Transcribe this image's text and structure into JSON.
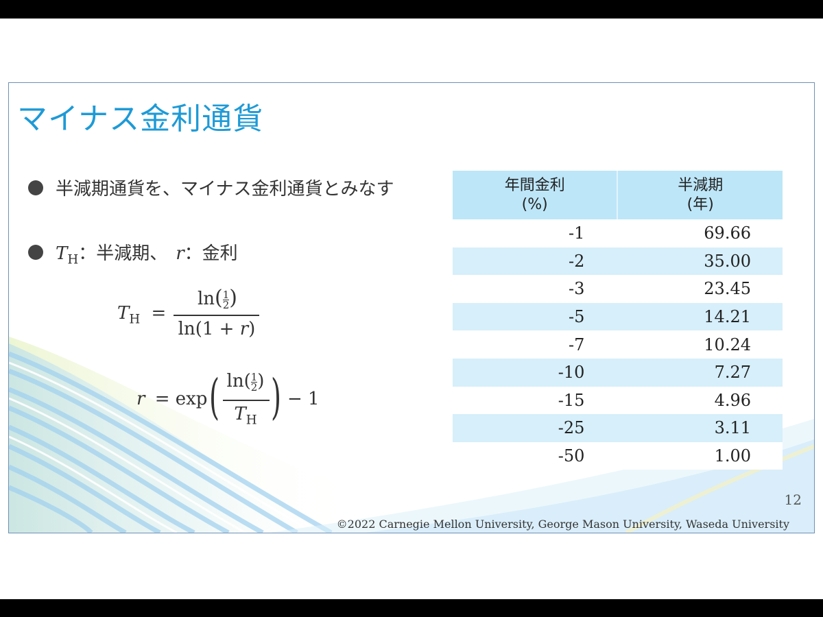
{
  "slide": {
    "title": "マイナス金利通貨",
    "bullets": [
      {
        "text": "半減期通貨を、マイナス金利通貨とみなす"
      },
      {
        "var_T": "T",
        "sub_H": "H",
        "text_a": "：半減期、",
        "var_r": "r",
        "text_b": "：金利"
      }
    ],
    "formula1": {
      "T": "T",
      "H": "H",
      "eq": "=",
      "ln_top": "ln",
      "one": "1",
      "two": "2",
      "den": "ln(1 + ",
      "r": "r",
      "close": ")"
    },
    "formula2": {
      "r": "r",
      "eq": "= exp",
      "ln_top": "ln",
      "one": "1",
      "two": "2",
      "T": "T",
      "H": "H",
      "minus_one": "− 1"
    },
    "table": {
      "headers": [
        "年間金利",
        "(%)",
        "半減期",
        "(年)"
      ],
      "rows": [
        [
          "-1",
          "69.66"
        ],
        [
          "-2",
          "35.00"
        ],
        [
          "-3",
          "23.45"
        ],
        [
          "-5",
          "14.21"
        ],
        [
          "-7",
          "10.24"
        ],
        [
          "-10",
          "7.27"
        ],
        [
          "-15",
          "4.96"
        ],
        [
          "-25",
          "3.11"
        ],
        [
          "-50",
          "1.00"
        ]
      ]
    },
    "page_number": "12",
    "footer": "©2022 Carnegie Mellon University, George Mason University, Waseda University"
  },
  "colors": {
    "title": "#1e9ad6",
    "table_header": "#bde6f8",
    "table_alt_row": "#d6effa",
    "frame": "#6f8fb5"
  }
}
